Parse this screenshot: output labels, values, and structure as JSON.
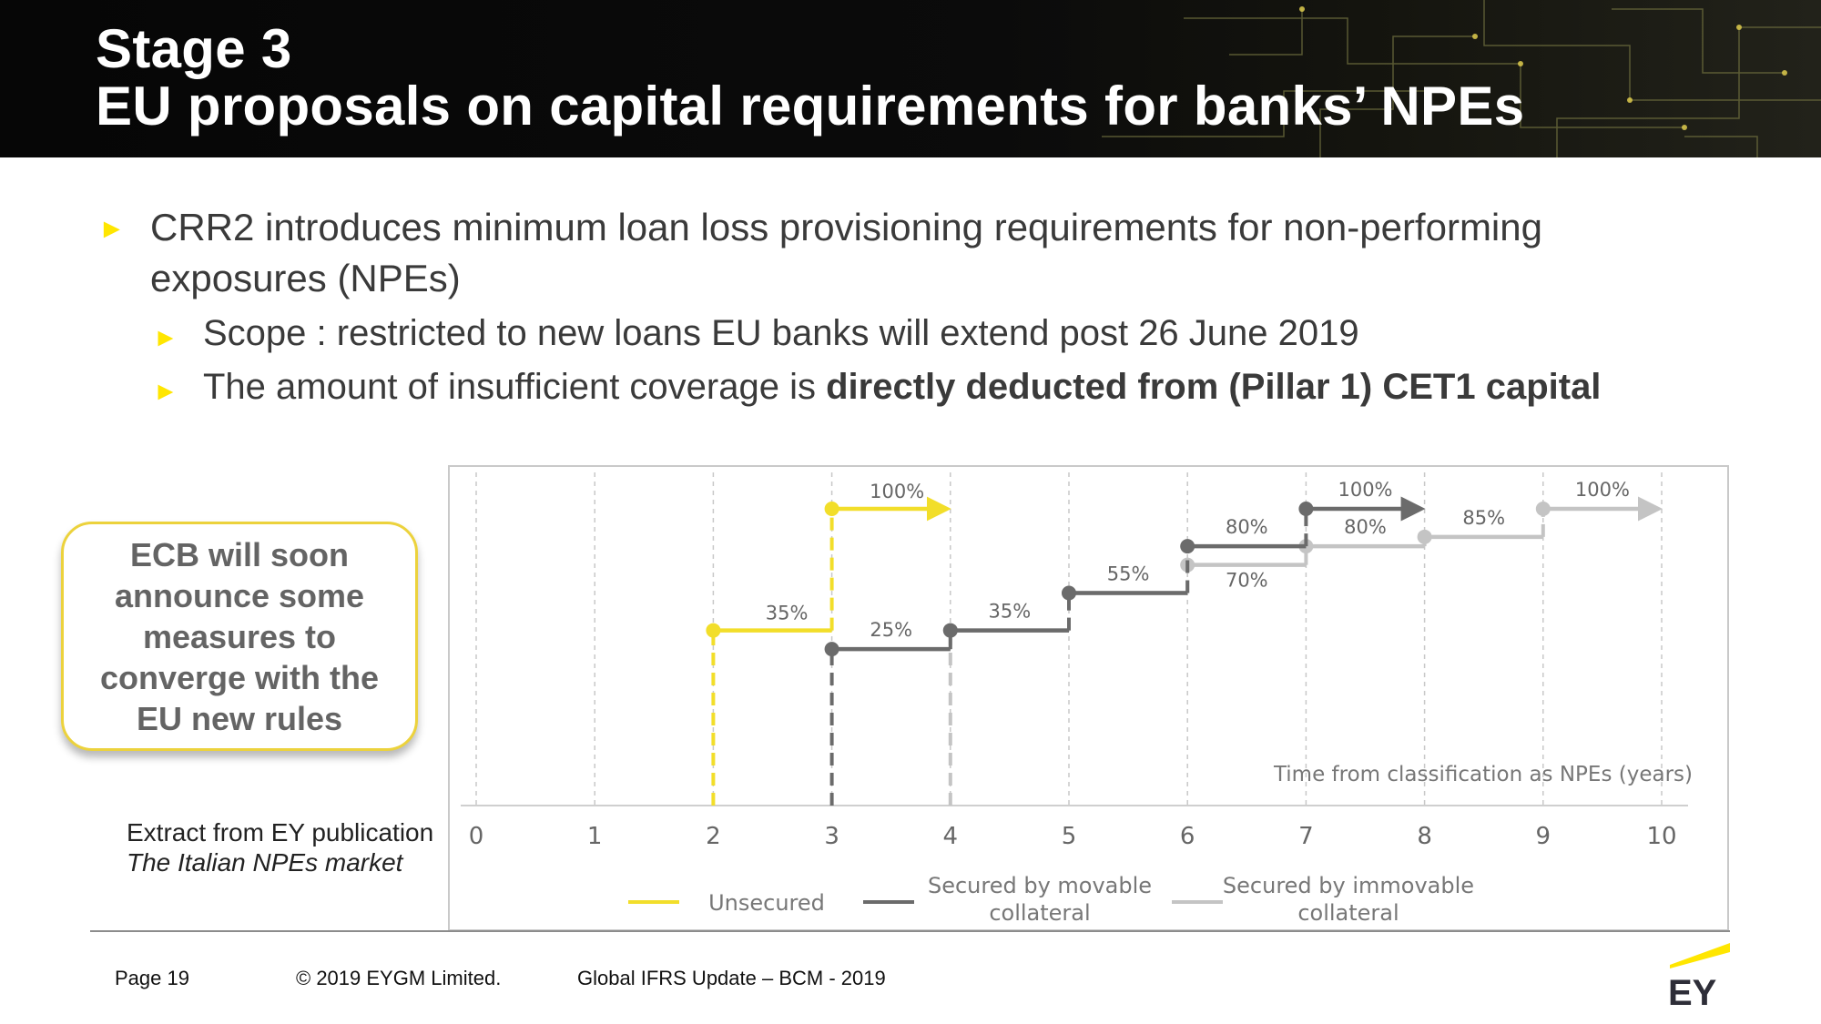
{
  "header": {
    "title_line1": "Stage 3",
    "title_line2": "EU proposals on capital requirements for banks’ NPEs"
  },
  "bullets": {
    "main": "CRR2 introduces minimum loan loss provisioning requirements for non-performing exposures (NPEs)",
    "sub1": "Scope : restricted to new loans EU banks will extend post 26 June 2019",
    "sub2_plain": "The amount of insufficient coverage is ",
    "sub2_bold": "directly deducted from (Pillar 1) CET1 capital",
    "arrow_glyph": "►"
  },
  "callout": {
    "text": "ECB will soon announce some measures to converge with the EU new rules"
  },
  "extract": {
    "line1": "Extract from EY publication",
    "line2": "The Italian NPEs market"
  },
  "footer": {
    "page": "Page 19",
    "copyright": "© 2019 EYGM Limited.",
    "event": "Global IFRS Update – BCM - 2019",
    "logo_text": "EY"
  },
  "colors": {
    "unsecured": "#f2de2a",
    "movable": "#6b6b6b",
    "immovable": "#c4c4c4",
    "accent": "#ffe600",
    "header_bg": "#0b0b0b"
  },
  "chart_data": {
    "type": "line",
    "step": true,
    "xlabel": "Time from classification as NPEs (years)",
    "ylabel": "",
    "x_ticks": [
      "0",
      "1",
      "2",
      "3",
      "4",
      "5",
      "6",
      "7",
      "8",
      "9",
      "10"
    ],
    "xlim": [
      0,
      10
    ],
    "ylim": [
      0,
      100
    ],
    "grid": "vertical dashed",
    "legend": "bottom",
    "series": [
      {
        "name": "Unsecured",
        "color": "#f2de2a",
        "points": [
          {
            "x": 2,
            "y": 35,
            "label": "35%"
          },
          {
            "x": 3,
            "y": 100,
            "label": "100%"
          }
        ],
        "continues_after": 4
      },
      {
        "name": "Secured by movable collateral",
        "color": "#6b6b6b",
        "points": [
          {
            "x": 3,
            "y": 25,
            "label": "25%"
          },
          {
            "x": 4,
            "y": 35,
            "label": "35%"
          },
          {
            "x": 5,
            "y": 55,
            "label": "55%"
          },
          {
            "x": 6,
            "y": 80,
            "label": "80%"
          },
          {
            "x": 7,
            "y": 100,
            "label": "100%"
          }
        ],
        "continues_after": 8
      },
      {
        "name": "Secured by immovable collateral",
        "color": "#c4c4c4",
        "points": [
          {
            "x": 4,
            "y": 35
          },
          {
            "x": 5,
            "y": 55
          },
          {
            "x": 6,
            "y": 70,
            "label": "70%"
          },
          {
            "x": 7,
            "y": 80,
            "label": "80%"
          },
          {
            "x": 8,
            "y": 85,
            "label": "85%"
          },
          {
            "x": 9,
            "y": 100,
            "label": "100%"
          }
        ],
        "continues_after": 10
      }
    ]
  }
}
